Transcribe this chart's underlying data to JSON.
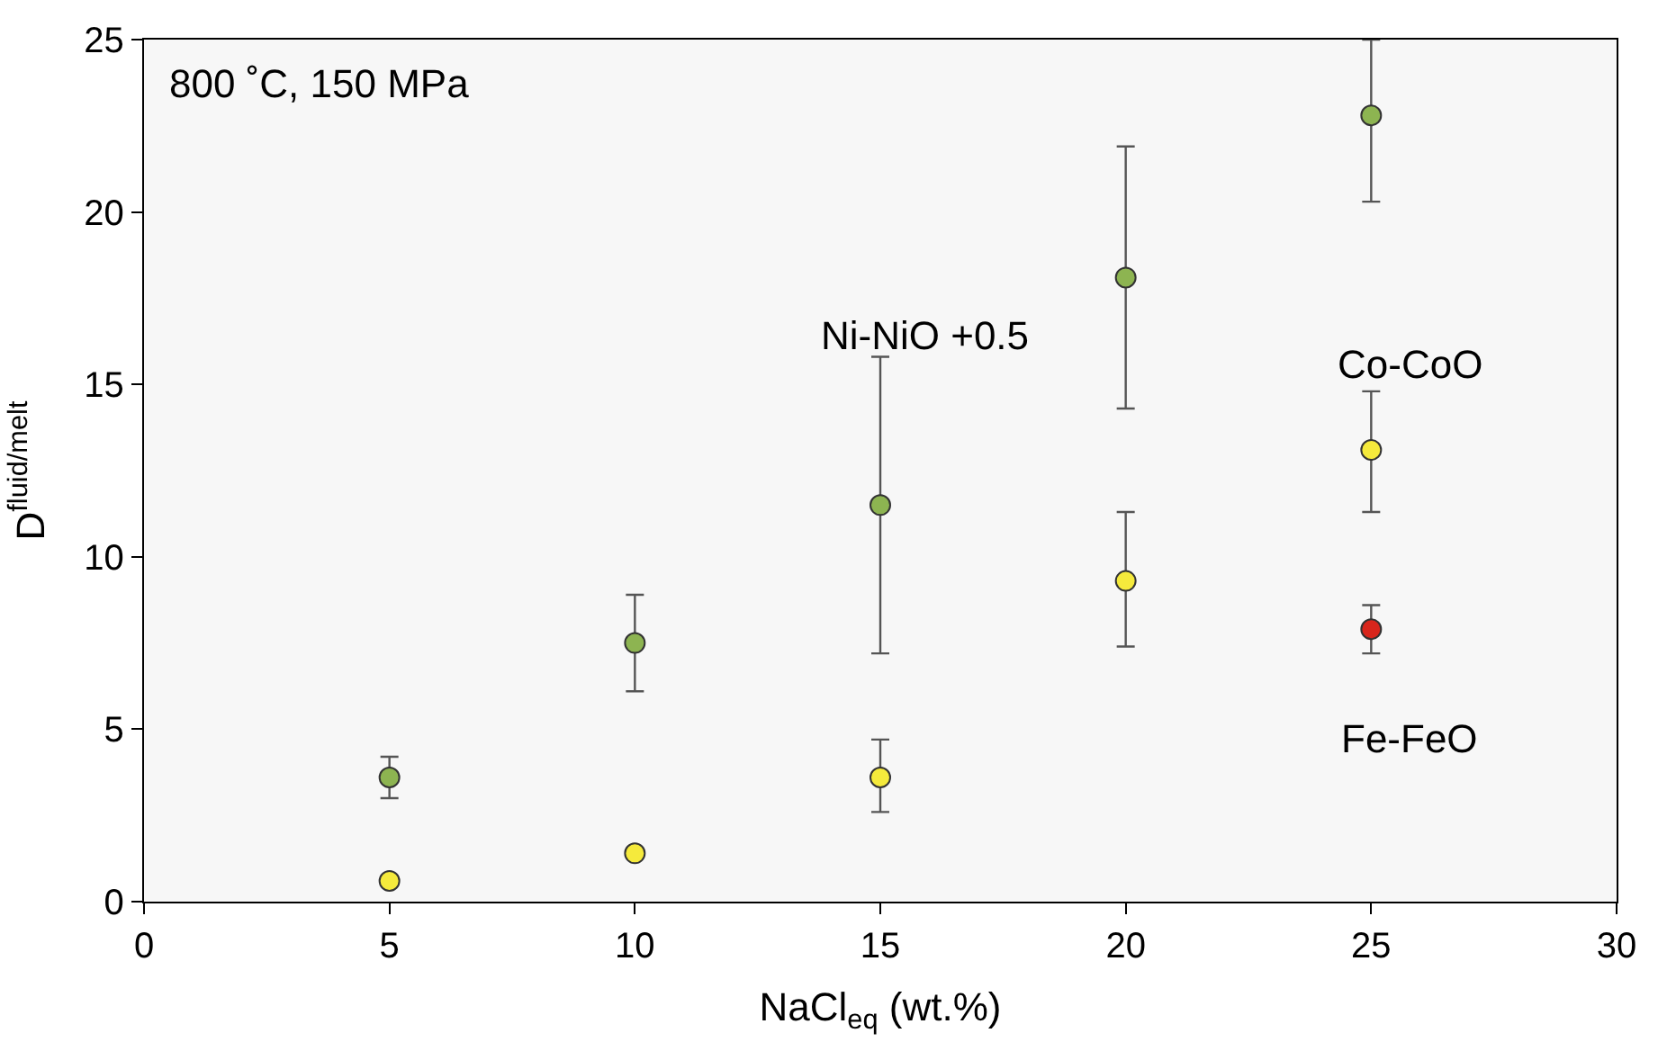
{
  "chart_data": {
    "type": "scatter",
    "xlabel": "NaCl$_{eq}$ (wt.%)",
    "ylabel": "D$^{fluid/melt}$",
    "annotations": [
      "800 ˚C, 150 MPa"
    ],
    "xlim": [
      0,
      30
    ],
    "xticks": [
      0,
      5,
      10,
      15,
      20,
      25,
      30
    ],
    "ylim": [
      0,
      25
    ],
    "yticks": [
      0,
      5,
      10,
      15,
      20,
      25
    ],
    "grid": false,
    "legend": false,
    "marker": "circle",
    "series": [
      {
        "name": "Ni-NiO +0.5",
        "color": "#8db451",
        "x": [
          5,
          10,
          15,
          20,
          25
        ],
        "values": [
          3.6,
          7.5,
          11.5,
          18.1,
          22.8
        ],
        "errors": [
          [
            3.0,
            4.2
          ],
          [
            6.1,
            8.9
          ],
          [
            7.2,
            15.8
          ],
          [
            14.3,
            21.9
          ],
          [
            20.3,
            25
          ]
        ]
      },
      {
        "name": "Co-CoO",
        "color": "#f5ea3c",
        "x": [
          5,
          10,
          15,
          20,
          25
        ],
        "values": [
          0.6,
          1.4,
          3.6,
          9.3,
          13.1
        ],
        "errors": [
          null,
          null,
          [
            2.6,
            4.7
          ],
          [
            7.4,
            11.3
          ],
          [
            11.3,
            14.8
          ]
        ]
      },
      {
        "name": "Fe-FeO",
        "color": "#d8261c",
        "x": [
          25
        ],
        "values": [
          7.9
        ],
        "errors": [
          [
            7.2,
            8.6
          ]
        ]
      }
    ]
  }
}
